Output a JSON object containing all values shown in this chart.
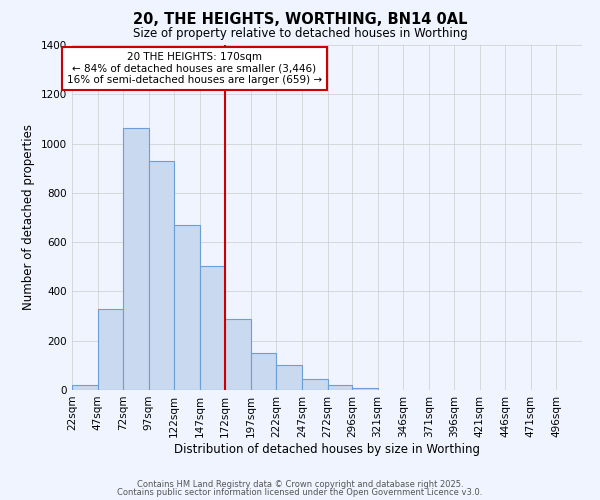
{
  "title": "20, THE HEIGHTS, WORTHING, BN14 0AL",
  "subtitle": "Size of property relative to detached houses in Worthing",
  "xlabel": "Distribution of detached houses by size in Worthing",
  "ylabel": "Number of detached properties",
  "bin_edges": [
    22,
    47,
    72,
    97,
    122,
    147,
    172,
    197,
    222,
    247,
    272,
    296,
    321,
    346,
    371,
    396,
    421,
    446,
    471,
    496,
    521
  ],
  "bar_heights": [
    20,
    330,
    1065,
    930,
    670,
    505,
    290,
    150,
    100,
    45,
    20,
    10,
    0,
    0,
    0,
    0,
    0,
    0,
    0,
    0
  ],
  "bar_color": "#c9d9f0",
  "bar_edge_color": "#6a9fd8",
  "vline_x": 172,
  "vline_color": "#cc0000",
  "ylim": [
    0,
    1400
  ],
  "yticks": [
    0,
    200,
    400,
    600,
    800,
    1000,
    1200,
    1400
  ],
  "annotation_title": "20 THE HEIGHTS: 170sqm",
  "annotation_line1": "← 84% of detached houses are smaller (3,446)",
  "annotation_line2": "16% of semi-detached houses are larger (659) →",
  "footer_line1": "Contains HM Land Registry data © Crown copyright and database right 2025.",
  "footer_line2": "Contains public sector information licensed under the Open Government Licence v3.0.",
  "background_color": "#f0f4ff",
  "grid_color": "#cccccc"
}
